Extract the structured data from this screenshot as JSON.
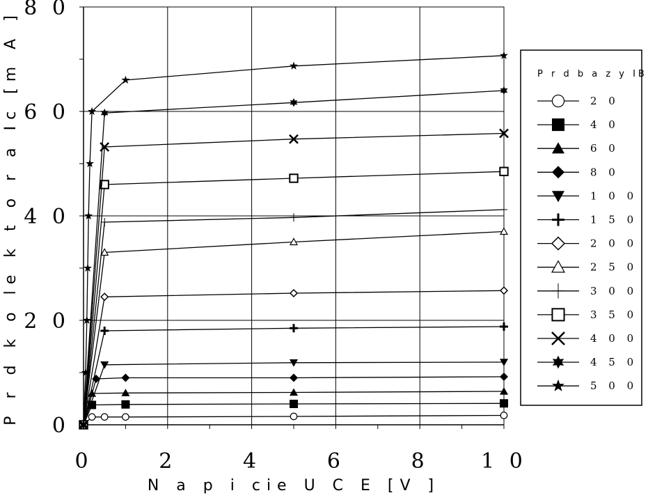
{
  "chart_data": {
    "type": "line",
    "xlabel": "N a p i  cie  U C E  [V ]",
    "ylabel": "P r  d  k o le k t o r a  Ic  [m A ]",
    "xlim": [
      0,
      10
    ],
    "ylim": [
      0,
      80
    ],
    "xticks": [
      0,
      2,
      4,
      6,
      8,
      10
    ],
    "yticks": [
      0,
      20,
      40,
      60,
      80
    ],
    "xtick_labels": [
      "0",
      "2",
      "4",
      "6",
      "8",
      "1 0"
    ],
    "ytick_labels": [
      "0",
      "2 0",
      "4 0",
      "6 0",
      "8 0"
    ],
    "grid": true,
    "legend": {
      "title": "P r  d  b a z y  IB  [u A ]",
      "position": "right"
    },
    "series": [
      {
        "name": "2 0",
        "marker": "circle-open",
        "points": [
          [
            0,
            0
          ],
          [
            0.2,
            1.5
          ],
          [
            0.5,
            1.5
          ],
          [
            1,
            1.5
          ],
          [
            5,
            1.6
          ],
          [
            10,
            1.8
          ]
        ]
      },
      {
        "name": "4 0",
        "marker": "square-filled",
        "points": [
          [
            0,
            0
          ],
          [
            0.2,
            3.8
          ],
          [
            1,
            3.9
          ],
          [
            5,
            4
          ],
          [
            10,
            4.1
          ]
        ]
      },
      {
        "name": "6 0",
        "marker": "triangle-up-filled",
        "points": [
          [
            0,
            0
          ],
          [
            0.2,
            6
          ],
          [
            1,
            6.1
          ],
          [
            5,
            6.2
          ],
          [
            10,
            6.4
          ]
        ]
      },
      {
        "name": "8 0",
        "marker": "diamond-filled",
        "points": [
          [
            0,
            0
          ],
          [
            0.3,
            8.8
          ],
          [
            1,
            9
          ],
          [
            5,
            9
          ],
          [
            10,
            9.2
          ]
        ]
      },
      {
        "name": "1 0 0",
        "marker": "triangle-down-filled",
        "points": [
          [
            0,
            0
          ],
          [
            0.5,
            11.5
          ],
          [
            5,
            11.9
          ],
          [
            10,
            12
          ]
        ]
      },
      {
        "name": "1 5 0",
        "marker": "plus-bold",
        "points": [
          [
            0,
            0
          ],
          [
            0.5,
            18
          ],
          [
            5,
            18.5
          ],
          [
            10,
            18.8
          ]
        ]
      },
      {
        "name": "2 0 0",
        "marker": "diamond-open",
        "points": [
          [
            0,
            0
          ],
          [
            0.5,
            24.5
          ],
          [
            5,
            25.2
          ],
          [
            10,
            25.7
          ]
        ]
      },
      {
        "name": "2 5 0",
        "marker": "triangle-up-open",
        "points": [
          [
            0,
            0
          ],
          [
            0.5,
            33
          ],
          [
            5,
            35
          ],
          [
            10,
            37
          ]
        ]
      },
      {
        "name": "3 0 0",
        "marker": "plus-thin",
        "points": [
          [
            0,
            0
          ],
          [
            0.5,
            38.8
          ],
          [
            5,
            39.7
          ],
          [
            10,
            41.2
          ]
        ]
      },
      {
        "name": "3 5 0",
        "marker": "square-open",
        "points": [
          [
            0,
            0
          ],
          [
            0.5,
            46
          ],
          [
            5,
            47.2
          ],
          [
            10,
            48.5
          ]
        ]
      },
      {
        "name": "4 0 0",
        "marker": "x-bold",
        "points": [
          [
            0,
            0
          ],
          [
            0.5,
            53.2
          ],
          [
            5,
            54.7
          ],
          [
            10,
            55.8
          ]
        ]
      },
      {
        "name": "4 5 0",
        "marker": "star6",
        "points": [
          [
            0,
            0
          ],
          [
            0.5,
            59.7
          ],
          [
            5,
            61.7
          ],
          [
            10,
            64
          ]
        ]
      },
      {
        "name": "5 0 0",
        "marker": "star5",
        "points": [
          [
            0,
            0
          ],
          [
            0.05,
            10
          ],
          [
            0.08,
            20
          ],
          [
            0.1,
            30
          ],
          [
            0.12,
            40
          ],
          [
            0.15,
            50
          ],
          [
            0.2,
            60
          ],
          [
            1,
            66
          ],
          [
            5,
            68.7
          ],
          [
            10,
            70.7
          ]
        ]
      }
    ]
  }
}
